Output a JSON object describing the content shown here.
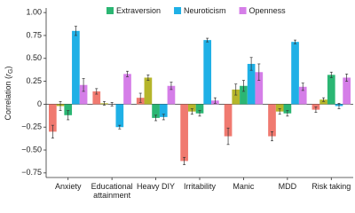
{
  "chart_data": {
    "type": "bar",
    "ylabel_parts": [
      "Correlation (",
      "r",
      "G",
      ")"
    ],
    "categories": [
      "Anxiety",
      "Educational attainment",
      "Heavy DIY",
      "Irritability",
      "Manic",
      "MDD",
      "Risk taking"
    ],
    "series": [
      {
        "color": "#f07a70",
        "values": [
          -0.3,
          0.14,
          0.07,
          -0.62,
          -0.35,
          -0.35,
          -0.06
        ],
        "errors": [
          0.07,
          0.03,
          0.05,
          0.04,
          0.09,
          0.05,
          0.03
        ]
      },
      {
        "color": "#b5b52a",
        "values": [
          -0.02,
          0.01,
          0.29,
          -0.08,
          0.16,
          -0.08,
          0.05
        ],
        "errors": [
          0.05,
          0.02,
          0.03,
          0.03,
          0.06,
          0.03,
          0.02
        ]
      },
      {
        "name": "Extraversion",
        "color": "#2bb673",
        "values": [
          -0.12,
          0.0,
          -0.15,
          -0.1,
          0.2,
          -0.1,
          0.32
        ],
        "errors": [
          0.05,
          0.02,
          0.03,
          0.03,
          0.06,
          0.03,
          0.03
        ]
      },
      {
        "name": "Neuroticism",
        "color": "#1fb0e6",
        "values": [
          0.8,
          -0.25,
          -0.14,
          0.7,
          0.44,
          0.68,
          -0.02
        ],
        "errors": [
          0.05,
          0.02,
          0.03,
          0.02,
          0.07,
          0.02,
          0.03
        ]
      },
      {
        "name": "Openness",
        "color": "#d57ee8",
        "values": [
          0.21,
          0.33,
          0.2,
          0.04,
          0.35,
          0.19,
          0.29
        ],
        "errors": [
          0.07,
          0.03,
          0.04,
          0.03,
          0.09,
          0.04,
          0.04
        ]
      }
    ],
    "ylim": [
      -0.8,
      1.05
    ],
    "yticks": [
      {
        "value": 1,
        "label": "1.00"
      },
      {
        "value": 0.75,
        "label": "0.75"
      },
      {
        "value": 0.5,
        "label": "0.50"
      },
      {
        "value": 0.25,
        "label": "0.25"
      },
      0,
      {
        "value": -0.25,
        "label": "−0.25"
      },
      {
        "value": -0.5,
        "label": "−0.50"
      },
      {
        "value": -0.75,
        "label": "−0.75"
      }
    ]
  }
}
